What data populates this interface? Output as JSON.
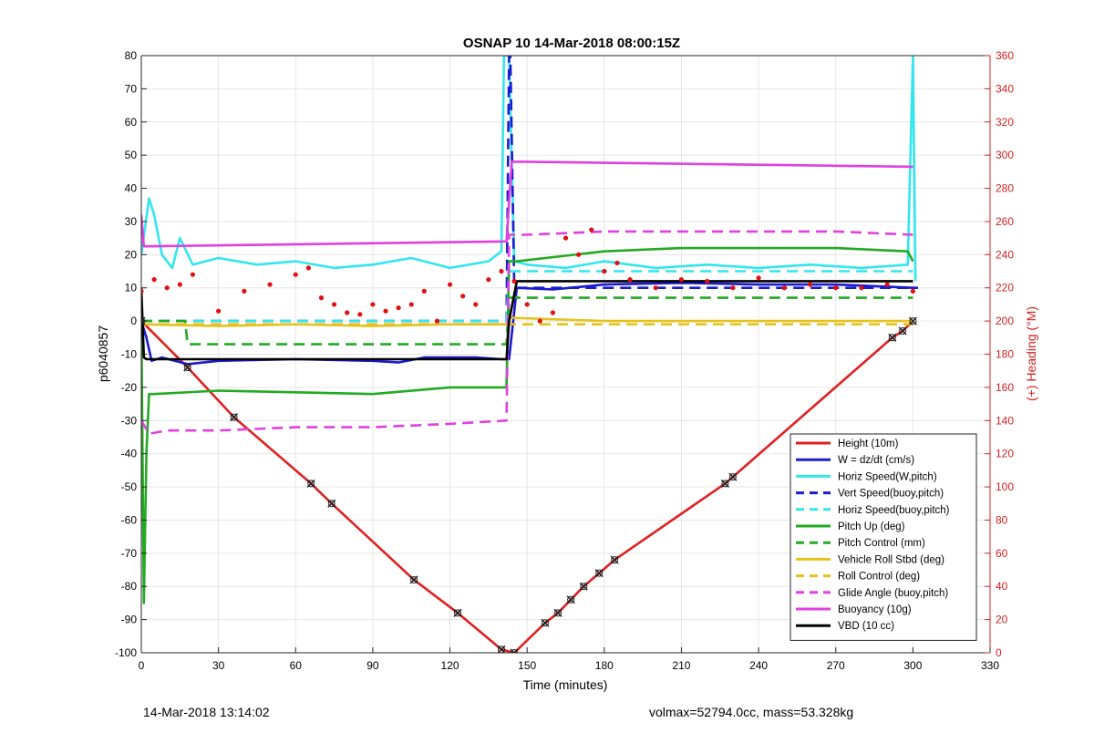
{
  "chart_data": {
    "type": "line",
    "title": "OSNAP 10 14-Mar-2018 08:00:15Z",
    "xlabel": "Time (minutes)",
    "ylabel": "p6040857",
    "y2label": "(+) Heading (°M)",
    "xlim": [
      0,
      330
    ],
    "ylim": [
      -100,
      80
    ],
    "y2lim": [
      0,
      360
    ],
    "xticks": [
      0,
      30,
      60,
      90,
      120,
      150,
      180,
      210,
      240,
      270,
      300,
      330
    ],
    "yticks": [
      -100,
      -90,
      -80,
      -70,
      -60,
      -50,
      -40,
      -30,
      -20,
      -10,
      0,
      10,
      20,
      30,
      40,
      50,
      60,
      70,
      80
    ],
    "y2ticks": [
      0,
      20,
      40,
      60,
      80,
      100,
      120,
      140,
      160,
      180,
      200,
      220,
      240,
      260,
      280,
      300,
      320,
      340,
      360
    ],
    "grid": true,
    "legend_position": "bottom-right",
    "colors": {
      "height": "#e02020",
      "w": "#1a1ad0",
      "horiz_speed": "#33e6ee",
      "pitch": "#22aa22",
      "roll": "#e6c21a",
      "glide": "#e040e0",
      "buoyancy": "#e040e0",
      "vbd": "#000000",
      "heading": "#e01010",
      "right_axis": "#d42020"
    },
    "series": [
      {
        "name": "Height (10m)",
        "color": "#e02020",
        "style": "solid",
        "x": [
          0,
          18,
          36,
          66,
          74,
          106,
          123,
          140,
          145,
          157,
          162,
          167,
          172,
          178,
          184,
          227,
          230,
          292,
          296,
          300
        ],
        "y": [
          0,
          -14,
          -29,
          -49,
          -55,
          -78,
          -88,
          -99,
          -100,
          -91,
          -88,
          -84,
          -80,
          -76,
          -72,
          -49,
          -47,
          -5,
          -3,
          0
        ]
      },
      {
        "name": "W = dz/dt (cm/s)",
        "color": "#1a1ad0",
        "style": "solid",
        "x": [
          0,
          2,
          4,
          8,
          18,
          30,
          60,
          90,
          100,
          110,
          120,
          130,
          140,
          143,
          146,
          160,
          180,
          210,
          240,
          270,
          300,
          302
        ],
        "y": [
          0,
          -5,
          -12,
          -11,
          -13,
          -12,
          -11.5,
          -12,
          -12.5,
          -11,
          -11,
          -11,
          -11.5,
          -11.5,
          10,
          9.5,
          11,
          11.5,
          11,
          11,
          10,
          10
        ]
      },
      {
        "name": "Horiz Speed(W,pitch)",
        "color": "#33e6ee",
        "style": "solid",
        "x": [
          0,
          3,
          5,
          8,
          12,
          15,
          20,
          30,
          45,
          60,
          75,
          90,
          105,
          120,
          135,
          140,
          141,
          143,
          145,
          150,
          165,
          180,
          200,
          220,
          240,
          260,
          280,
          298,
          300,
          301
        ],
        "y": [
          20,
          37,
          32,
          20,
          16,
          25,
          17,
          19,
          17,
          18,
          16,
          17,
          19,
          16,
          18,
          21,
          80,
          80,
          18,
          17,
          16,
          18,
          16,
          17,
          16,
          17,
          16,
          17,
          80,
          12
        ]
      },
      {
        "name": "Vert Speed(buoy,pitch)",
        "color": "#1a1ad0",
        "style": "dashed",
        "x": [
          0,
          142,
          143,
          143.5,
          145,
          300
        ],
        "y": [
          0,
          0,
          80,
          80,
          10,
          10
        ]
      },
      {
        "name": "Horiz Speed(buoy,pitch)",
        "color": "#33e6ee",
        "style": "dashed",
        "x": [
          0,
          142,
          143,
          300
        ],
        "y": [
          0,
          0,
          15,
          15
        ]
      },
      {
        "name": "Pitch Up (deg)",
        "color": "#22aa22",
        "style": "solid",
        "x": [
          0,
          1,
          2,
          3,
          5,
          30,
          60,
          90,
          120,
          140,
          142,
          143,
          146,
          180,
          210,
          240,
          270,
          298,
          300
        ],
        "y": [
          0,
          -85,
          -40,
          -22,
          -22,
          -21,
          -21.5,
          -22,
          -20,
          -20,
          -20,
          18,
          18,
          21,
          22,
          22,
          22,
          21,
          18
        ]
      },
      {
        "name": "Pitch Control (mm)",
        "color": "#22aa22",
        "style": "dashed",
        "x": [
          0,
          17,
          18,
          142,
          143,
          300
        ],
        "y": [
          0,
          0,
          -7,
          -7,
          7,
          7
        ]
      },
      {
        "name": "Vehicle Roll Stbd (deg)",
        "color": "#e6c21a",
        "style": "solid",
        "x": [
          0,
          30,
          60,
          90,
          120,
          142,
          143,
          180,
          210,
          240,
          270,
          300
        ],
        "y": [
          -1,
          -1.5,
          -1,
          -1.5,
          -1,
          -1,
          1,
          0,
          0,
          0,
          0,
          0
        ]
      },
      {
        "name": "Roll Control (deg)",
        "color": "#e6c21a",
        "style": "dashed",
        "x": [
          0,
          300
        ],
        "y": [
          -1,
          -1
        ]
      },
      {
        "name": "Glide Angle (buoy,pitch)",
        "color": "#e040e0",
        "style": "dashed",
        "x": [
          0,
          3,
          10,
          30,
          60,
          90,
          120,
          142,
          143,
          150,
          180,
          210,
          240,
          270,
          300
        ],
        "y": [
          -30,
          -34,
          -33,
          -33,
          -32,
          -32,
          -31,
          -30,
          26,
          26,
          27,
          27,
          27,
          27,
          26
        ]
      },
      {
        "name": "Buoyancy (10g)",
        "color": "#e040e0",
        "style": "solid",
        "x": [
          0,
          1,
          2,
          142,
          144,
          150,
          300
        ],
        "y": [
          32,
          22.5,
          22.5,
          24,
          48,
          48,
          46.5
        ]
      },
      {
        "name": "VBD (10 cc)",
        "color": "#000000",
        "style": "solid",
        "x": [
          0,
          1,
          2,
          142,
          143,
          146,
          300
        ],
        "y": [
          10,
          -11,
          -11.5,
          -11.5,
          0,
          12,
          12
        ]
      },
      {
        "name": "Heading",
        "color": "#e01010",
        "style": "dots",
        "axis": "right",
        "x": [
          0,
          5,
          10,
          15,
          20,
          30,
          40,
          50,
          60,
          65,
          70,
          75,
          80,
          85,
          90,
          95,
          100,
          105,
          110,
          115,
          120,
          125,
          130,
          135,
          140,
          145,
          150,
          155,
          160,
          165,
          170,
          175,
          180,
          185,
          190,
          200,
          210,
          220,
          230,
          240,
          250,
          260,
          270,
          280,
          290,
          300
        ],
        "y": [
          218,
          225,
          220,
          222,
          228,
          206,
          218,
          222,
          228,
          232,
          214,
          210,
          205,
          204,
          210,
          206,
          208,
          210,
          218,
          200,
          222,
          215,
          210,
          225,
          230,
          224,
          210,
          200,
          205,
          250,
          240,
          255,
          230,
          235,
          225,
          220,
          225,
          224,
          220,
          226,
          220,
          222,
          220,
          220,
          222,
          218
        ]
      }
    ]
  },
  "footer": {
    "left": "14-Mar-2018 13:14:02",
    "right": "volmax=52794.0cc, mass=53.328kg"
  }
}
